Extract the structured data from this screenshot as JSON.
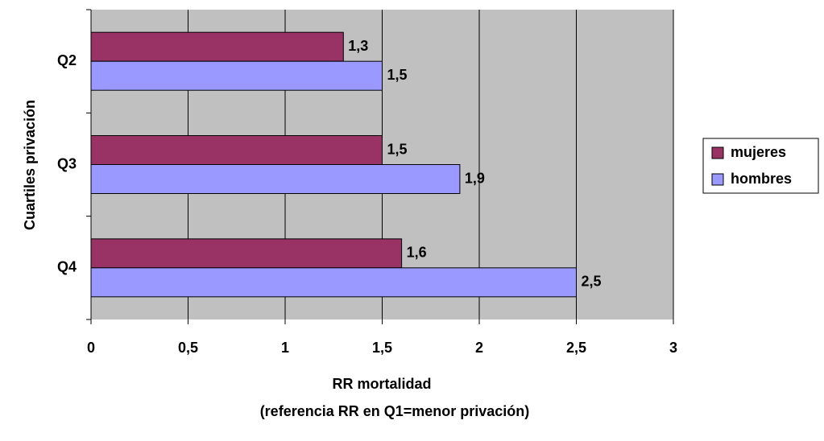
{
  "chart_data": {
    "type": "bar",
    "orientation": "horizontal",
    "xlabel": [
      "RR mortalidad",
      "(referencia RR en Q1=menor privación)"
    ],
    "ylabel": "Cuartiles privación",
    "categories": [
      "Q2",
      "Q3",
      "Q4"
    ],
    "series": [
      {
        "name": "mujeres",
        "color": "#993366",
        "values": [
          1.3,
          1.5,
          1.6
        ],
        "value_labels": [
          "1,3",
          "1,5",
          "1,6"
        ]
      },
      {
        "name": "hombres",
        "color": "#9999ff",
        "values": [
          1.5,
          1.9,
          2.5
        ],
        "value_labels": [
          "1,5",
          "1,9",
          "2,5"
        ]
      }
    ],
    "xlim": [
      0,
      3
    ],
    "xticks": [
      0,
      {
        "value": 0.5,
        "label": "0,5"
      },
      1,
      {
        "value": 1.5,
        "label": "1,5"
      },
      2,
      {
        "value": 2.5,
        "label": "2,5"
      },
      3
    ],
    "grid": true,
    "legend": "right"
  }
}
